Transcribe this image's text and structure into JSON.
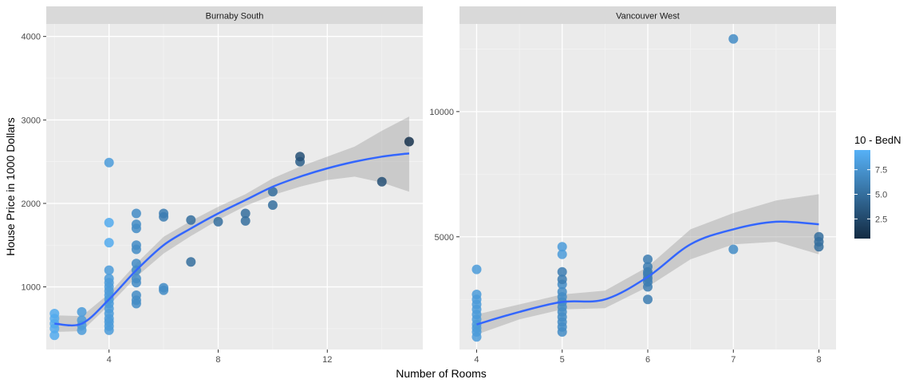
{
  "chart_data": {
    "type": "scatter",
    "xlabel": "Number of Rooms",
    "ylabel": "House Price in 1000 Dollars",
    "grid": true,
    "legend": {
      "title": "10 - BedN",
      "position": "right",
      "range": [
        0.5,
        9.5
      ],
      "ticks": [
        2.5,
        5.0,
        7.5
      ],
      "tick_labels": [
        "2.5",
        "5.0",
        "7.5"
      ],
      "colors": [
        "#132B43",
        "#56B1F7"
      ]
    },
    "panels": [
      {
        "strip": "Burnaby South",
        "xlim": [
          1.7,
          15.5
        ],
        "ylim": [
          250,
          4150
        ],
        "xticks": [
          4,
          8,
          12
        ],
        "xtick_labels": [
          "4",
          "8",
          "12"
        ],
        "yticks": [
          1000,
          2000,
          3000,
          4000
        ],
        "ytick_labels": [
          "1000",
          "2000",
          "3000",
          "4000"
        ],
        "points": [
          [
            2,
            420,
            9
          ],
          [
            2,
            500,
            9
          ],
          [
            2,
            560,
            9
          ],
          [
            2,
            620,
            9
          ],
          [
            2,
            680,
            9
          ],
          [
            3,
            480,
            8
          ],
          [
            3,
            540,
            8
          ],
          [
            3,
            600,
            8
          ],
          [
            3,
            700,
            8
          ],
          [
            4,
            480,
            8
          ],
          [
            4,
            530,
            8
          ],
          [
            4,
            580,
            8
          ],
          [
            4,
            620,
            8
          ],
          [
            4,
            680,
            8
          ],
          [
            4,
            740,
            8
          ],
          [
            4,
            800,
            8
          ],
          [
            4,
            850,
            8
          ],
          [
            4,
            900,
            8
          ],
          [
            4,
            950,
            8
          ],
          [
            4,
            1000,
            8
          ],
          [
            4,
            1050,
            8
          ],
          [
            4,
            1100,
            8
          ],
          [
            4,
            1200,
            8
          ],
          [
            4,
            1530,
            9
          ],
          [
            4,
            1770,
            9
          ],
          [
            4,
            2490,
            8
          ],
          [
            5,
            800,
            7
          ],
          [
            5,
            840,
            7
          ],
          [
            5,
            900,
            7
          ],
          [
            5,
            1050,
            7
          ],
          [
            5,
            1100,
            7
          ],
          [
            5,
            1200,
            7
          ],
          [
            5,
            1280,
            7
          ],
          [
            5,
            1450,
            7
          ],
          [
            5,
            1500,
            7
          ],
          [
            5,
            1700,
            7
          ],
          [
            5,
            1750,
            7
          ],
          [
            5,
            1880,
            7
          ],
          [
            6,
            960,
            7
          ],
          [
            6,
            990,
            7
          ],
          [
            6,
            1840,
            6
          ],
          [
            6,
            1880,
            6
          ],
          [
            7,
            1300,
            5
          ],
          [
            7,
            1800,
            5
          ],
          [
            8,
            1780,
            5
          ],
          [
            9,
            1790,
            5
          ],
          [
            9,
            1880,
            5
          ],
          [
            10,
            1980,
            5
          ],
          [
            10,
            2140,
            5
          ],
          [
            11,
            2500,
            4
          ],
          [
            11,
            2560,
            3
          ],
          [
            14,
            2260,
            3
          ],
          [
            15,
            2740,
            1
          ]
        ],
        "smooth": {
          "x": [
            2,
            3,
            4,
            5,
            6,
            7,
            8,
            9,
            10,
            11,
            12,
            13,
            14,
            15
          ],
          "y": [
            560,
            560,
            850,
            1200,
            1500,
            1700,
            1880,
            2040,
            2200,
            2320,
            2420,
            2500,
            2560,
            2600
          ],
          "lower": [
            460,
            470,
            780,
            1120,
            1400,
            1610,
            1800,
            1970,
            2100,
            2200,
            2280,
            2320,
            2250,
            2140
          ],
          "upper": [
            660,
            650,
            920,
            1280,
            1600,
            1790,
            1960,
            2110,
            2300,
            2440,
            2560,
            2680,
            2870,
            3040
          ]
        }
      },
      {
        "strip": "Vancouver West",
        "xlim": [
          3.8,
          8.2
        ],
        "ylim": [
          500,
          13500
        ],
        "xticks": [
          4,
          5,
          6,
          7,
          8
        ],
        "xtick_labels": [
          "4",
          "5",
          "6",
          "7",
          "8"
        ],
        "yticks": [
          5000,
          10000
        ],
        "ytick_labels": [
          "5000",
          "10000"
        ],
        "points": [
          [
            4,
            1000,
            8
          ],
          [
            4,
            1200,
            8
          ],
          [
            4,
            1350,
            8
          ],
          [
            4,
            1500,
            8
          ],
          [
            4,
            1700,
            8
          ],
          [
            4,
            1900,
            8
          ],
          [
            4,
            2100,
            8
          ],
          [
            4,
            2300,
            8
          ],
          [
            4,
            2500,
            8
          ],
          [
            4,
            2700,
            8
          ],
          [
            4,
            3700,
            8
          ],
          [
            5,
            1200,
            7
          ],
          [
            5,
            1400,
            7
          ],
          [
            5,
            1600,
            7
          ],
          [
            5,
            1800,
            7
          ],
          [
            5,
            2000,
            7
          ],
          [
            5,
            2200,
            7
          ],
          [
            5,
            2400,
            7
          ],
          [
            5,
            2600,
            7
          ],
          [
            5,
            2800,
            7
          ],
          [
            5,
            3100,
            7
          ],
          [
            5,
            3300,
            6
          ],
          [
            5,
            3600,
            6
          ],
          [
            5,
            4300,
            8
          ],
          [
            5,
            4600,
            8
          ],
          [
            6,
            2500,
            6
          ],
          [
            6,
            3000,
            6
          ],
          [
            6,
            3200,
            6
          ],
          [
            6,
            3350,
            6
          ],
          [
            6,
            3500,
            6
          ],
          [
            6,
            3600,
            6
          ],
          [
            6,
            3800,
            6
          ],
          [
            6,
            4100,
            6
          ],
          [
            7,
            4500,
            7
          ],
          [
            7,
            12900,
            7
          ],
          [
            8,
            4600,
            5
          ],
          [
            8,
            4800,
            5
          ],
          [
            8,
            5000,
            5
          ]
        ],
        "smooth": {
          "x": [
            4,
            4.5,
            5,
            5.5,
            6,
            6.5,
            7,
            7.5,
            8
          ],
          "y": [
            1500,
            2000,
            2400,
            2500,
            3400,
            4700,
            5300,
            5600,
            5500
          ],
          "lower": [
            1100,
            1700,
            2100,
            2150,
            3000,
            4100,
            4700,
            4800,
            4300
          ],
          "upper": [
            1900,
            2300,
            2700,
            2850,
            3800,
            5300,
            5950,
            6450,
            6700
          ]
        }
      }
    ]
  }
}
